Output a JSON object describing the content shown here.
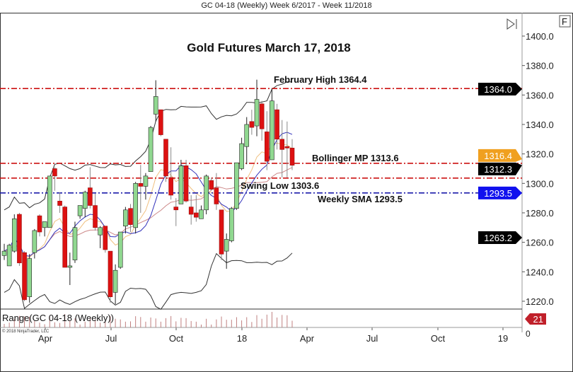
{
  "window_title": "GC 04-18 (Weekly)  Week 6/2017 - Week 11/2018",
  "buttons": {
    "f_label": "F",
    "scroll_end_icon": "skip-to-end-icon"
  },
  "chart_data": {
    "type": "candlestick",
    "title": "Gold Futures March 17, 2018",
    "instrument": "GC 04-18 (Weekly)",
    "ylim": [
      1213,
      1408
    ],
    "y_ticks": [
      "1400.0",
      "1380.0",
      "1360.0",
      "1340.0",
      "1320.0",
      "1300.0",
      "1280.0",
      "1260.0",
      "1240.0",
      "1220.0"
    ],
    "y_tick_values": [
      1400,
      1380,
      1360,
      1340,
      1320,
      1300,
      1280,
      1260,
      1240,
      1220
    ],
    "x_ticks": [
      "Apr",
      "Jul",
      "Oct",
      "18",
      "Apr",
      "Jul",
      "Oct",
      "19"
    ],
    "colors": {
      "up": "#90d890",
      "down": "#dd1111",
      "resistance": "#cc1111",
      "sma": "#1a1aaa",
      "label_orange": "#f0a020",
      "label_blue": "#1111ee",
      "label_red": "#c0202a"
    },
    "candles": [
      [
        1251,
        1259,
        1248,
        1254
      ],
      [
        1244,
        1259,
        1244,
        1258
      ],
      [
        1254,
        1279,
        1253,
        1276
      ],
      [
        1279,
        1280,
        1244,
        1246
      ],
      [
        1253,
        1254,
        1220,
        1221
      ],
      [
        1223,
        1252,
        1219,
        1249
      ],
      [
        1253,
        1269,
        1249,
        1268
      ],
      [
        1278,
        1279,
        1264,
        1267
      ],
      [
        1270,
        1274,
        1264,
        1274
      ],
      [
        1270,
        1305,
        1270,
        1305
      ],
      [
        1310,
        1311,
        1295,
        1305
      ],
      [
        1288,
        1294,
        1280,
        1285
      ],
      [
        1284,
        1285,
        1243,
        1243
      ],
      [
        1243,
        1253,
        1231,
        1244
      ],
      [
        1248,
        1274,
        1246,
        1270
      ],
      [
        1278,
        1285,
        1276,
        1285
      ],
      [
        1283,
        1295,
        1277,
        1294
      ],
      [
        1297,
        1311,
        1283,
        1285
      ],
      [
        1285,
        1293,
        1268,
        1270
      ],
      [
        1265,
        1271,
        1256,
        1270
      ],
      [
        1271,
        1271,
        1253,
        1255
      ],
      [
        1254,
        1254,
        1219,
        1223
      ],
      [
        1226,
        1245,
        1218,
        1241
      ],
      [
        1243,
        1267,
        1242,
        1267
      ],
      [
        1271,
        1284,
        1266,
        1282
      ],
      [
        1283,
        1286,
        1267,
        1272
      ],
      [
        1270,
        1301,
        1266,
        1300
      ],
      [
        1300,
        1312.5,
        1280,
        1298
      ],
      [
        1298,
        1307,
        1289,
        1305
      ],
      [
        1308,
        1339,
        1308,
        1338
      ],
      [
        1347,
        1370,
        1342,
        1359
      ],
      [
        1350,
        1350,
        1332,
        1333
      ],
      [
        1330,
        1330,
        1301,
        1305
      ],
      [
        1304,
        1324.5,
        1289,
        1292
      ],
      [
        1284,
        1290,
        1271,
        1282
      ],
      [
        1286,
        1316,
        1286,
        1312
      ],
      [
        1312,
        1316,
        1287,
        1288
      ],
      [
        1284,
        1292,
        1272,
        1279
      ],
      [
        1280,
        1292,
        1274,
        1277
      ],
      [
        1276,
        1285,
        1276,
        1282
      ],
      [
        1282,
        1306,
        1279,
        1305
      ],
      [
        1302,
        1304,
        1295,
        1296
      ],
      [
        1297,
        1307,
        1282,
        1286
      ],
      [
        1282,
        1282,
        1248,
        1252
      ],
      [
        1254,
        1266,
        1242,
        1262
      ],
      [
        1261,
        1284,
        1260,
        1283
      ],
      [
        1283,
        1314,
        1282,
        1314
      ],
      [
        1310,
        1331,
        1309,
        1327
      ],
      [
        1325,
        1345,
        1313,
        1340
      ],
      [
        1342,
        1350,
        1333,
        1338
      ],
      [
        1339,
        1370.4,
        1332,
        1357
      ],
      [
        1354,
        1356,
        1329,
        1337
      ],
      [
        1335,
        1349,
        1309,
        1315
      ],
      [
        1316,
        1364.5,
        1316,
        1356
      ],
      [
        1350,
        1354,
        1323,
        1330
      ],
      [
        1330,
        1343,
        1304,
        1323
      ],
      [
        1325,
        1342,
        1304,
        1324
      ],
      [
        1324,
        1330,
        1309,
        1312.3
      ]
    ],
    "candle_fields": [
      "open",
      "high",
      "low",
      "close"
    ],
    "levels": [
      {
        "label": "February High 1364.4",
        "value": 1364.4,
        "color": "#cc1111"
      },
      {
        "label": "Bollinger MP 1313.6",
        "value": 1313.6,
        "color": "#cc1111"
      },
      {
        "label": "Swing Low 1303.6",
        "value": 1303.6,
        "color": "#cc1111"
      },
      {
        "label": "Weekly SMA 1293.5",
        "value": 1293.5,
        "color": "#1a1aaa"
      }
    ],
    "price_markers": [
      {
        "text": "1364.0",
        "value": 1364.0,
        "color": "#000000"
      },
      {
        "text": "1316.4",
        "value": 1316.4,
        "color": "#f0a020"
      },
      {
        "text": "1312.3",
        "value": 1312.3,
        "color": "#000000"
      },
      {
        "text": "1293.5",
        "value": 1293.5,
        "color": "#1111ee"
      },
      {
        "text": "1263.2",
        "value": 1263.2,
        "color": "#000000"
      }
    ],
    "range_panel": {
      "label": "Range(GC 04-18 (Weekly))",
      "last_value": "21",
      "zero_tick": "0"
    },
    "copyright": "© 2018 NinjaTrader, LLC"
  }
}
